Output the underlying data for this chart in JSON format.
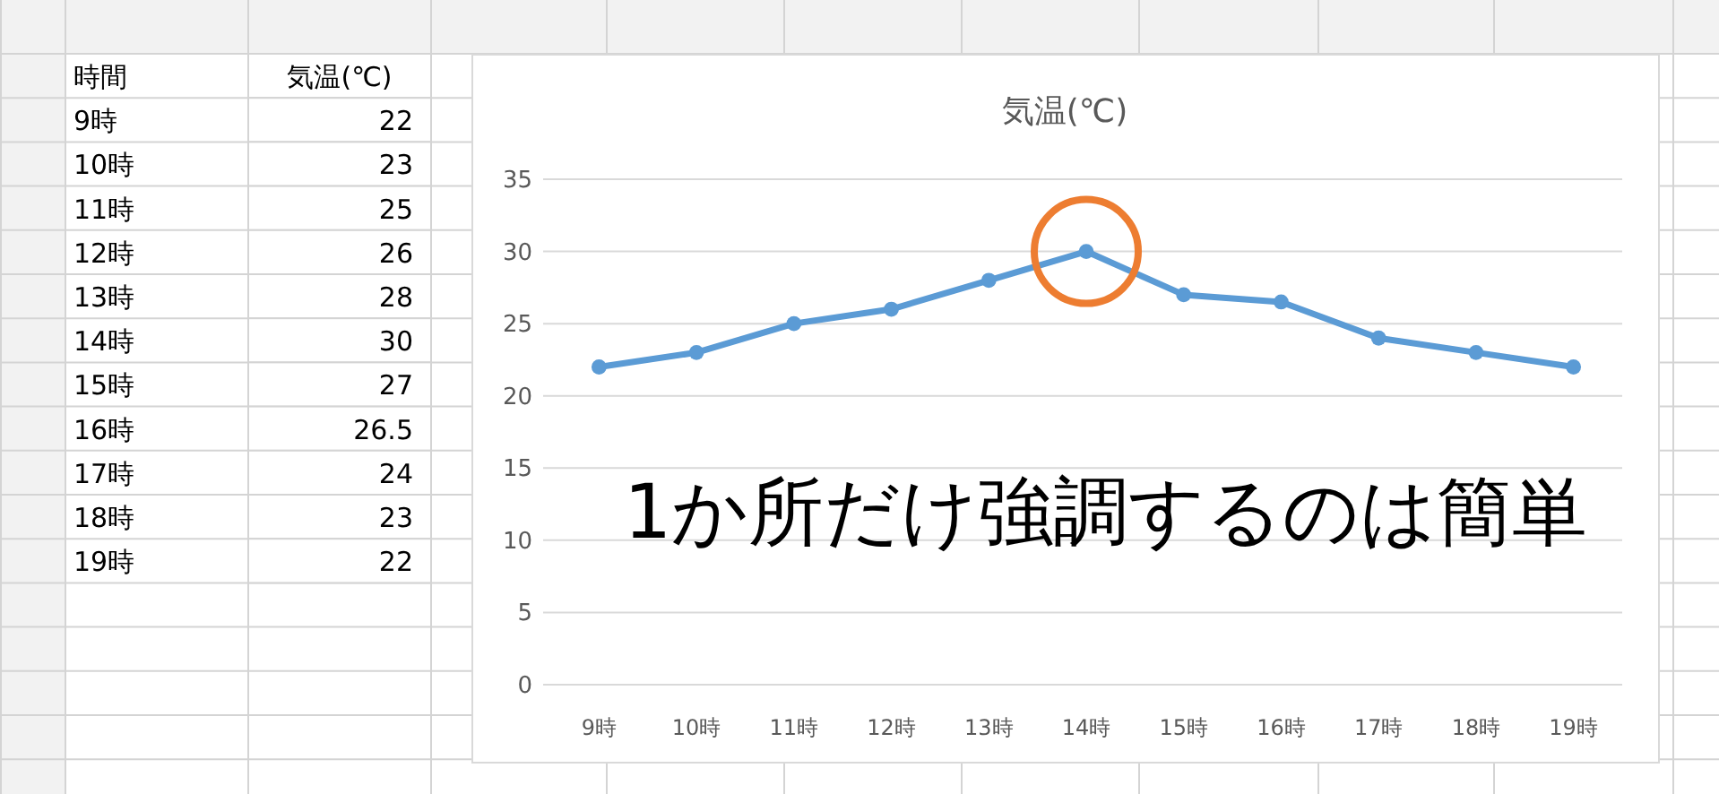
{
  "chart_data": [
    {
      "type": "heatmap",
      "categories": [
        "気温(℃)"
      ],
      "y_categories": [
        "9時",
        "10時",
        "11時",
        "12時",
        "13時",
        "14時",
        "15時",
        "16時",
        "17時",
        "18時",
        "19時"
      ],
      "cells": [
        [
          22
        ],
        [
          23
        ],
        [
          25
        ],
        [
          26
        ],
        [
          28
        ],
        [
          30
        ],
        [
          27
        ],
        [
          26.5
        ],
        [
          24
        ],
        [
          23
        ],
        [
          22
        ]
      ],
      "color": "#ffffff",
      "data_labels": true,
      "annotations": [
        "時間"
      ]
    },
    {
      "type": "line",
      "title": "気温(℃)",
      "categories": [
        "9時",
        "10時",
        "11時",
        "12時",
        "13時",
        "14時",
        "15時",
        "16時",
        "17時",
        "18時",
        "19時"
      ],
      "series": [
        {
          "color": "#5b9bd5",
          "values": [
            22,
            23,
            25,
            26,
            28,
            30,
            27,
            26.5,
            24,
            23,
            22
          ]
        }
      ],
      "ylim": [
        0,
        35
      ],
      "yticks": [
        0,
        5,
        10,
        15,
        20,
        25,
        30,
        35
      ],
      "grid": "y",
      "marker": "circle",
      "line_style": "solid",
      "annotations": [
        {
          "text": "1か所だけ強調するのは簡単",
          "x": "14時",
          "y": 30
        }
      ]
    }
  ]
}
